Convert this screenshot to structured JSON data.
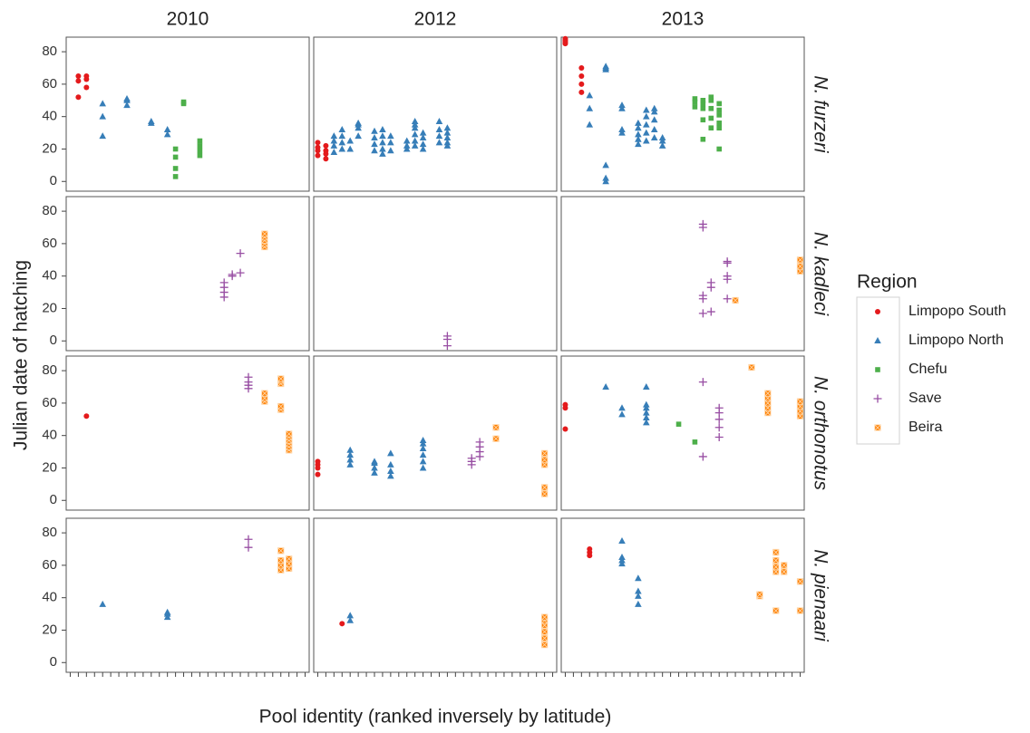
{
  "chart_data": {
    "type": "scatter",
    "x_label": "Pool identity (ranked inversely by latitude)",
    "y_label": "Julian date of hatching",
    "legend_title": "Region",
    "columns": [
      "2010",
      "2012",
      "2013"
    ],
    "rows": [
      "N. furzeri",
      "N. kadleci",
      "N. orthonotus",
      "N. pienaari"
    ],
    "series": [
      {
        "name": "Limpopo South",
        "color": "#e41a1c",
        "marker": "circle"
      },
      {
        "name": "Limpopo North",
        "color": "#377eb8",
        "marker": "triangle"
      },
      {
        "name": "Chefu",
        "color": "#4daf4a",
        "marker": "square"
      },
      {
        "name": "Save",
        "color": "#984ea3",
        "marker": "plus"
      },
      {
        "name": "Beira",
        "color": "#ff7f00",
        "marker": "boxed-cross"
      }
    ],
    "ylim": [
      -6,
      89
    ],
    "yticks": [
      0,
      20,
      40,
      60,
      80
    ],
    "xlim": [
      0.5,
      30.5
    ],
    "xticks": [
      1,
      2,
      3,
      4,
      5,
      6,
      7,
      8,
      9,
      10,
      11,
      12,
      13,
      14,
      15,
      16,
      17,
      18,
      19,
      20,
      21,
      22,
      23,
      24,
      25,
      26,
      27,
      28,
      29,
      30
    ],
    "grid": false,
    "panels": [
      [
        [
          {
            "x": [
              2,
              2,
              2,
              3,
              3,
              3
            ],
            "y": [
              52,
              62,
              65,
              58,
              63,
              65
            ]
          },
          {
            "x": [
              5,
              5,
              5,
              8,
              8,
              8,
              11,
              11,
              13,
              13
            ],
            "y": [
              28,
              40,
              48,
              47,
              50,
              51,
              36,
              37,
              29,
              32
            ]
          },
          {
            "x": [
              14,
              14,
              14,
              14,
              15,
              15,
              17,
              17,
              17,
              17
            ],
            "y": [
              3,
              8,
              15,
              20,
              48,
              49,
              16,
              19,
              22,
              25
            ]
          },
          {
            "x": [],
            "y": []
          },
          {
            "x": [],
            "y": []
          }
        ],
        [
          {
            "x": [
              1,
              1,
              1,
              1,
              2,
              2,
              2,
              2
            ],
            "y": [
              16,
              19,
              21,
              24,
              14,
              17,
              19,
              22
            ]
          },
          {
            "x": [
              3,
              3,
              3,
              3,
              4,
              4,
              4,
              4,
              5,
              5,
              6,
              6,
              6,
              6,
              8,
              8,
              8,
              8,
              9,
              9,
              9,
              9,
              9,
              10,
              10,
              10,
              12,
              12,
              12,
              13,
              13,
              13,
              13,
              13,
              13,
              14,
              14,
              14,
              14,
              16,
              16,
              16,
              16,
              17,
              17,
              17,
              17,
              17
            ],
            "y": [
              18,
              22,
              25,
              28,
              20,
              24,
              28,
              32,
              20,
              25,
              28,
              33,
              35,
              36,
              19,
              23,
              27,
              31,
              17,
              20,
              24,
              28,
              32,
              19,
              24,
              28,
              20,
              22,
              25,
              22,
              25,
              29,
              33,
              35,
              37,
              20,
              23,
              27,
              30,
              24,
              28,
              32,
              37,
              22,
              24,
              27,
              30,
              33
            ]
          },
          {
            "x": [],
            "y": []
          },
          {
            "x": [],
            "y": []
          },
          {
            "x": [],
            "y": []
          }
        ],
        [
          {
            "x": [
              1,
              1,
              1,
              1,
              3,
              3,
              3,
              3
            ],
            "y": [
              85,
              86,
              87,
              88,
              55,
              60,
              65,
              70
            ]
          },
          {
            "x": [
              4,
              4,
              4,
              6,
              6,
              6,
              6,
              6,
              6,
              8,
              8,
              8,
              8,
              10,
              10,
              10,
              10,
              10,
              11,
              11,
              11,
              11,
              11,
              12,
              12,
              12,
              12,
              12,
              13,
              13,
              13
            ],
            "y": [
              35,
              45,
              53,
              0,
              2,
              10,
              69,
              70,
              71,
              30,
              32,
              45,
              47,
              23,
              26,
              29,
              33,
              36,
              25,
              30,
              35,
              40,
              44,
              27,
              32,
              38,
              43,
              45,
              22,
              25,
              27
            ]
          },
          {
            "x": [
              17,
              17,
              17,
              18,
              18,
              18,
              18,
              18,
              19,
              19,
              19,
              19,
              19,
              20,
              20,
              20,
              20,
              20,
              20
            ],
            "y": [
              46,
              49,
              51,
              26,
              38,
              45,
              48,
              50,
              33,
              39,
              45,
              50,
              52,
              20,
              33,
              36,
              41,
              44,
              48
            ]
          },
          {
            "x": [],
            "y": []
          },
          {
            "x": [],
            "y": []
          }
        ]
      ],
      [
        [
          {
            "x": [],
            "y": []
          },
          {
            "x": [],
            "y": []
          },
          {
            "x": [],
            "y": []
          },
          {
            "x": [
              20,
              20,
              20,
              20,
              21,
              21,
              22,
              22
            ],
            "y": [
              27,
              30,
              33,
              36,
              40,
              41,
              42,
              54
            ]
          },
          {
            "x": [
              25,
              25,
              25,
              25,
              25
            ],
            "y": [
              58,
              60,
              62,
              64,
              66
            ]
          }
        ],
        [
          {
            "x": [],
            "y": []
          },
          {
            "x": [],
            "y": []
          },
          {
            "x": [],
            "y": []
          },
          {
            "x": [
              17,
              17,
              17
            ],
            "y": [
              -3,
              1,
              3
            ]
          },
          {
            "x": [],
            "y": []
          }
        ],
        [
          {
            "x": [],
            "y": []
          },
          {
            "x": [],
            "y": []
          },
          {
            "x": [],
            "y": []
          },
          {
            "x": [
              18,
              18,
              18,
              18,
              18,
              19,
              19,
              19,
              21,
              21,
              21,
              21,
              21
            ],
            "y": [
              17,
              26,
              28,
              70,
              72,
              18,
              33,
              36,
              26,
              38,
              40,
              48,
              49
            ]
          },
          {
            "x": [
              22,
              30,
              30,
              30
            ],
            "y": [
              25,
              43,
              46,
              50
            ]
          }
        ]
      ],
      [
        [
          {
            "x": [
              3
            ],
            "y": [
              52
            ]
          },
          {
            "x": [],
            "y": []
          },
          {
            "x": [],
            "y": []
          },
          {
            "x": [
              23,
              23,
              23,
              23
            ],
            "y": [
              69,
              71,
              73,
              76
            ]
          },
          {
            "x": [
              25,
              25,
              25,
              27,
              27,
              27,
              27,
              27,
              28,
              28,
              28,
              28,
              28,
              28
            ],
            "y": [
              61,
              63,
              66,
              56,
              58,
              72,
              74,
              75,
              31,
              33,
              35,
              37,
              39,
              41
            ]
          }
        ],
        [
          {
            "x": [
              1,
              1,
              1,
              1
            ],
            "y": [
              16,
              20,
              22,
              24
            ]
          },
          {
            "x": [
              5,
              5,
              5,
              5,
              8,
              8,
              8,
              8,
              10,
              10,
              10,
              10,
              14,
              14,
              14,
              14,
              14,
              14
            ],
            "y": [
              22,
              25,
              28,
              31,
              17,
              20,
              23,
              24,
              15,
              18,
              22,
              29,
              20,
              24,
              28,
              32,
              35,
              37
            ]
          },
          {
            "x": [],
            "y": []
          },
          {
            "x": [
              20,
              20,
              20,
              21,
              21,
              21,
              21
            ],
            "y": [
              22,
              24,
              26,
              27,
              30,
              33,
              36
            ]
          },
          {
            "x": [
              23,
              23,
              29,
              29,
              29,
              29,
              29
            ],
            "y": [
              38,
              45,
              4,
              8,
              22,
              25,
              29
            ]
          }
        ],
        [
          {
            "x": [
              1,
              1,
              1
            ],
            "y": [
              44,
              57,
              59
            ]
          },
          {
            "x": [
              6,
              8,
              8,
              11,
              11,
              11,
              11,
              11,
              11
            ],
            "y": [
              70,
              53,
              57,
              48,
              51,
              54,
              57,
              59,
              70
            ]
          },
          {
            "x": [
              15,
              17
            ],
            "y": [
              47,
              36
            ]
          },
          {
            "x": [
              18,
              18,
              20,
              20,
              20,
              20,
              20
            ],
            "y": [
              27,
              73,
              39,
              45,
              50,
              54,
              57
            ]
          },
          {
            "x": [
              24,
              26,
              26,
              26,
              26,
              26,
              30,
              30,
              30,
              30
            ],
            "y": [
              82,
              54,
              57,
              60,
              63,
              66,
              52,
              55,
              58,
              61
            ]
          }
        ]
      ],
      [
        [
          {
            "x": [],
            "y": []
          },
          {
            "x": [
              5,
              13,
              13,
              13
            ],
            "y": [
              36,
              28,
              30,
              31
            ]
          },
          {
            "x": [],
            "y": []
          },
          {
            "x": [
              23,
              23
            ],
            "y": [
              71,
              76
            ]
          },
          {
            "x": [
              27,
              27,
              27,
              27,
              28,
              28,
              28
            ],
            "y": [
              57,
              60,
              63,
              69,
              58,
              61,
              64
            ]
          }
        ],
        [
          {
            "x": [
              4
            ],
            "y": [
              24
            ]
          },
          {
            "x": [
              5,
              5
            ],
            "y": [
              26,
              29
            ]
          },
          {
            "x": [],
            "y": []
          },
          {
            "x": [],
            "y": []
          },
          {
            "x": [
              29,
              29,
              29,
              29,
              29,
              29
            ],
            "y": [
              11,
              15,
              19,
              23,
              26,
              28
            ]
          }
        ],
        [
          {
            "x": [
              4,
              4,
              4
            ],
            "y": [
              66,
              68,
              70
            ]
          },
          {
            "x": [
              8,
              8,
              8,
              8,
              10,
              10,
              10,
              10
            ],
            "y": [
              61,
              63,
              65,
              75,
              36,
              41,
              44,
              52
            ]
          },
          {
            "x": [],
            "y": []
          },
          {
            "x": [],
            "y": []
          },
          {
            "x": [
              25,
              25,
              27,
              27,
              27,
              27,
              27,
              28,
              28,
              30,
              30
            ],
            "y": [
              41,
              42,
              32,
              56,
              59,
              63,
              68,
              56,
              60,
              32,
              50
            ]
          }
        ]
      ]
    ]
  }
}
